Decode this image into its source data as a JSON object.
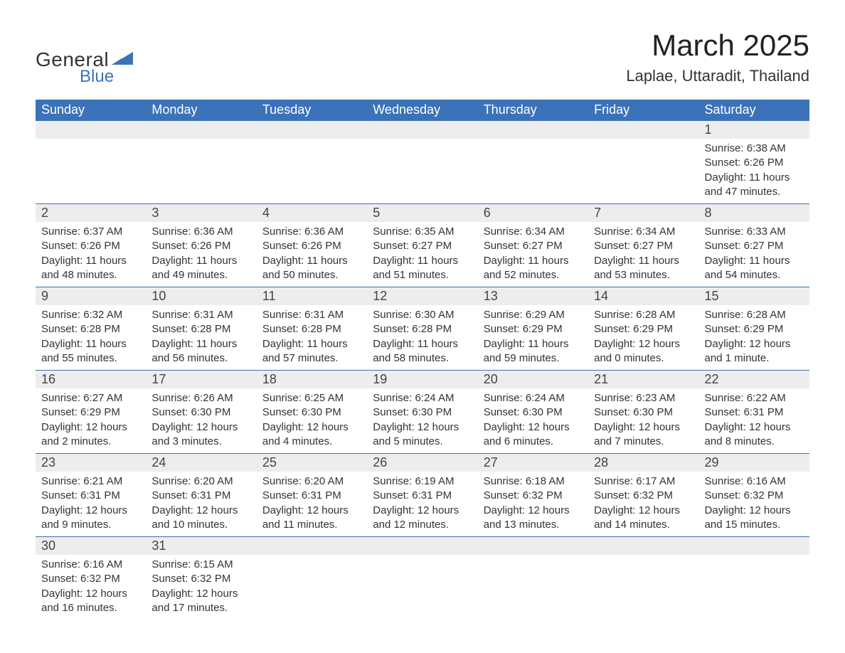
{
  "logo": {
    "text_general": "General",
    "text_blue": "Blue",
    "brand_color": "#3b72b8",
    "text_color": "#333333"
  },
  "header": {
    "month_title": "March 2025",
    "location": "Laplae, Uttaradit, Thailand",
    "title_fontsize": 42,
    "location_fontsize": 22
  },
  "style": {
    "header_bg": "#3b72b8",
    "header_text": "#ffffff",
    "daynum_bg": "#ededed",
    "border_color": "#3b72b8",
    "body_text": "#333333",
    "cell_fontsize": 15,
    "daynum_fontsize": 18,
    "weekday_fontsize": 18
  },
  "weekdays": [
    "Sunday",
    "Monday",
    "Tuesday",
    "Wednesday",
    "Thursday",
    "Friday",
    "Saturday"
  ],
  "weeks": [
    {
      "nums": [
        "",
        "",
        "",
        "",
        "",
        "",
        "1"
      ],
      "details": [
        "",
        "",
        "",
        "",
        "",
        "",
        "Sunrise: 6:38 AM\nSunset: 6:26 PM\nDaylight: 11 hours and 47 minutes."
      ]
    },
    {
      "nums": [
        "2",
        "3",
        "4",
        "5",
        "6",
        "7",
        "8"
      ],
      "details": [
        "Sunrise: 6:37 AM\nSunset: 6:26 PM\nDaylight: 11 hours and 48 minutes.",
        "Sunrise: 6:36 AM\nSunset: 6:26 PM\nDaylight: 11 hours and 49 minutes.",
        "Sunrise: 6:36 AM\nSunset: 6:26 PM\nDaylight: 11 hours and 50 minutes.",
        "Sunrise: 6:35 AM\nSunset: 6:27 PM\nDaylight: 11 hours and 51 minutes.",
        "Sunrise: 6:34 AM\nSunset: 6:27 PM\nDaylight: 11 hours and 52 minutes.",
        "Sunrise: 6:34 AM\nSunset: 6:27 PM\nDaylight: 11 hours and 53 minutes.",
        "Sunrise: 6:33 AM\nSunset: 6:27 PM\nDaylight: 11 hours and 54 minutes."
      ]
    },
    {
      "nums": [
        "9",
        "10",
        "11",
        "12",
        "13",
        "14",
        "15"
      ],
      "details": [
        "Sunrise: 6:32 AM\nSunset: 6:28 PM\nDaylight: 11 hours and 55 minutes.",
        "Sunrise: 6:31 AM\nSunset: 6:28 PM\nDaylight: 11 hours and 56 minutes.",
        "Sunrise: 6:31 AM\nSunset: 6:28 PM\nDaylight: 11 hours and 57 minutes.",
        "Sunrise: 6:30 AM\nSunset: 6:28 PM\nDaylight: 11 hours and 58 minutes.",
        "Sunrise: 6:29 AM\nSunset: 6:29 PM\nDaylight: 11 hours and 59 minutes.",
        "Sunrise: 6:28 AM\nSunset: 6:29 PM\nDaylight: 12 hours and 0 minutes.",
        "Sunrise: 6:28 AM\nSunset: 6:29 PM\nDaylight: 12 hours and 1 minute."
      ]
    },
    {
      "nums": [
        "16",
        "17",
        "18",
        "19",
        "20",
        "21",
        "22"
      ],
      "details": [
        "Sunrise: 6:27 AM\nSunset: 6:29 PM\nDaylight: 12 hours and 2 minutes.",
        "Sunrise: 6:26 AM\nSunset: 6:30 PM\nDaylight: 12 hours and 3 minutes.",
        "Sunrise: 6:25 AM\nSunset: 6:30 PM\nDaylight: 12 hours and 4 minutes.",
        "Sunrise: 6:24 AM\nSunset: 6:30 PM\nDaylight: 12 hours and 5 minutes.",
        "Sunrise: 6:24 AM\nSunset: 6:30 PM\nDaylight: 12 hours and 6 minutes.",
        "Sunrise: 6:23 AM\nSunset: 6:30 PM\nDaylight: 12 hours and 7 minutes.",
        "Sunrise: 6:22 AM\nSunset: 6:31 PM\nDaylight: 12 hours and 8 minutes."
      ]
    },
    {
      "nums": [
        "23",
        "24",
        "25",
        "26",
        "27",
        "28",
        "29"
      ],
      "details": [
        "Sunrise: 6:21 AM\nSunset: 6:31 PM\nDaylight: 12 hours and 9 minutes.",
        "Sunrise: 6:20 AM\nSunset: 6:31 PM\nDaylight: 12 hours and 10 minutes.",
        "Sunrise: 6:20 AM\nSunset: 6:31 PM\nDaylight: 12 hours and 11 minutes.",
        "Sunrise: 6:19 AM\nSunset: 6:31 PM\nDaylight: 12 hours and 12 minutes.",
        "Sunrise: 6:18 AM\nSunset: 6:32 PM\nDaylight: 12 hours and 13 minutes.",
        "Sunrise: 6:17 AM\nSunset: 6:32 PM\nDaylight: 12 hours and 14 minutes.",
        "Sunrise: 6:16 AM\nSunset: 6:32 PM\nDaylight: 12 hours and 15 minutes."
      ]
    },
    {
      "nums": [
        "30",
        "31",
        "",
        "",
        "",
        "",
        ""
      ],
      "details": [
        "Sunrise: 6:16 AM\nSunset: 6:32 PM\nDaylight: 12 hours and 16 minutes.",
        "Sunrise: 6:15 AM\nSunset: 6:32 PM\nDaylight: 12 hours and 17 minutes.",
        "",
        "",
        "",
        "",
        ""
      ]
    }
  ]
}
